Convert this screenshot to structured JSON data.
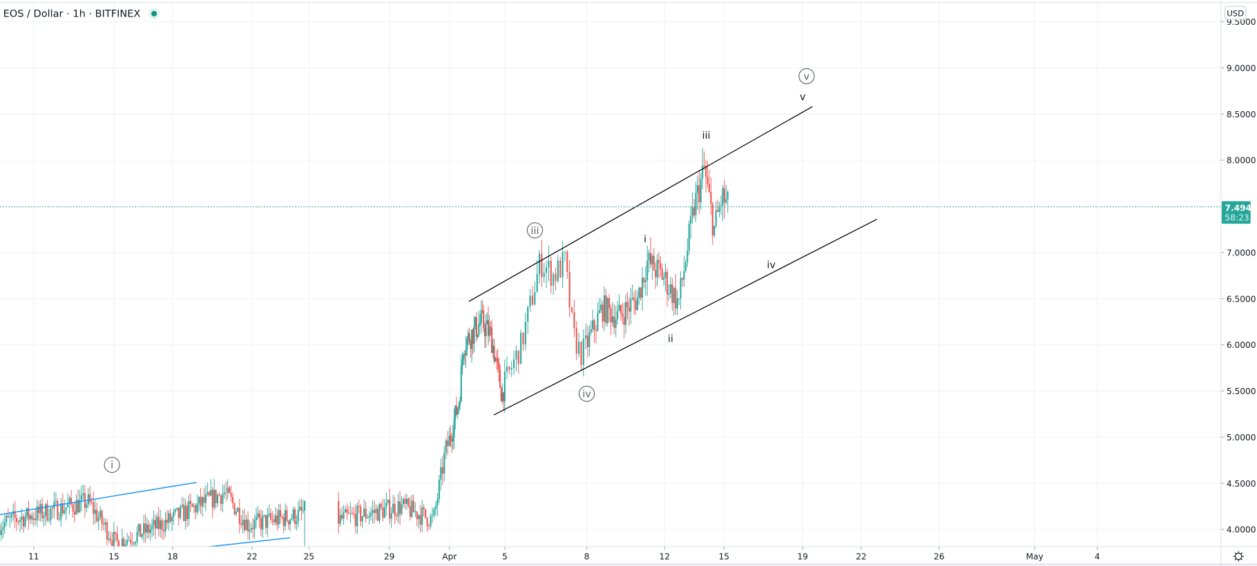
{
  "header": {
    "title": "EOS / Dollar · 1h · BITFINEX",
    "status_icon": "market-open-dot",
    "status_color": "#089981"
  },
  "price_axis": {
    "currency_label": "USD",
    "last_price": "7.4946",
    "countdown": "58:23",
    "settings_icon": "gear-icon"
  },
  "colors": {
    "up": "#26a69a",
    "down": "#ef5350",
    "channel": "#000000",
    "wedge": "#2196f3",
    "grid": "#f0f3fa"
  },
  "chart_data": {
    "type": "candlestick",
    "title": "EOS / Dollar · 1h · BITFINEX",
    "ylim": [
      3.85,
      9.7
    ],
    "yticks": [
      "9.5000",
      "9.0000",
      "8.5000",
      "8.0000",
      "7.0000",
      "6.5000",
      "6.0000",
      "5.5000",
      "5.0000",
      "4.5000",
      "4.0000"
    ],
    "ytick_values": [
      9.5,
      9.0,
      8.5,
      8.0,
      7.0,
      6.5,
      6.0,
      5.5,
      5.0,
      4.5,
      4.0
    ],
    "xticks": [
      {
        "label": "11",
        "day": 10
      },
      {
        "label": "15",
        "day": 14
      },
      {
        "label": "18",
        "day": 17
      },
      {
        "label": "22",
        "day": 21
      },
      {
        "label": "25",
        "day": 24
      },
      {
        "label": "29",
        "day": 28
      },
      {
        "label": "Apr",
        "day": 31
      },
      {
        "label": "5",
        "day": 35
      },
      {
        "label": "8",
        "day": 38
      },
      {
        "label": "12",
        "day": 42
      },
      {
        "label": "15",
        "day": 45
      },
      {
        "label": "19",
        "day": 49
      },
      {
        "label": "22",
        "day": 52
      },
      {
        "label": "26",
        "day": 56
      },
      {
        "label": "May",
        "day": 61
      },
      {
        "label": "4",
        "day": 64
      }
    ],
    "price_path": [
      [
        8.3,
        4.05
      ],
      [
        8.9,
        4.1
      ],
      [
        12.7,
        4.3
      ],
      [
        14.1,
        3.85
      ],
      [
        16.4,
        4.05
      ],
      [
        19.6,
        4.4
      ],
      [
        20.8,
        4.05
      ],
      [
        23.4,
        4.15
      ],
      [
        23.8,
        4.2
      ],
      [
        25.4,
        4.1
      ],
      [
        28.6,
        4.25
      ],
      [
        30.2,
        4.1
      ],
      [
        30.8,
        4.85
      ],
      [
        31.7,
        5.4
      ],
      [
        32.0,
        6.0
      ],
      [
        33.3,
        6.25
      ],
      [
        34.0,
        6.1
      ],
      [
        34.8,
        5.45
      ],
      [
        35.6,
        6.0
      ],
      [
        36.3,
        6.9
      ],
      [
        36.8,
        6.75
      ],
      [
        37.2,
        6.9
      ],
      [
        37.5,
        6.1
      ],
      [
        37.8,
        5.9
      ],
      [
        38.8,
        6.4
      ],
      [
        39.6,
        6.3
      ],
      [
        40.6,
        6.5
      ],
      [
        41.1,
        6.9
      ],
      [
        41.9,
        6.75
      ],
      [
        42.7,
        6.45
      ],
      [
        43.5,
        7.5
      ],
      [
        44.0,
        7.9
      ],
      [
        44.5,
        7.25
      ],
      [
        44.9,
        7.6
      ],
      [
        45.2,
        7.4946
      ]
    ],
    "data_gap": [
      23.8,
      25.4
    ],
    "last_price": 7.4946,
    "trendlines": [
      {
        "name": "channel-upper",
        "color": "#000000",
        "from": [
          32.4,
          6.47
        ],
        "to": [
          49.5,
          8.58
        ]
      },
      {
        "name": "channel-lower",
        "color": "#000000",
        "from": [
          34.2,
          5.24
        ],
        "to": [
          52.8,
          7.36
        ]
      },
      {
        "name": "wedge-upper",
        "color": "#2196f3",
        "from": [
          8.3,
          4.16
        ],
        "to": [
          18.2,
          4.51
        ]
      },
      {
        "name": "wedge-lower",
        "color": "#2196f3",
        "from": [
          18.7,
          3.81
        ],
        "to": [
          23.0,
          3.91
        ]
      }
    ],
    "wave_labels": [
      {
        "text": "i",
        "circled": true,
        "day": 13.9,
        "price": 4.7
      },
      {
        "text": "iii",
        "circled": true,
        "day": 36.1,
        "price": 7.24
      },
      {
        "text": "iv",
        "circled": true,
        "day": 38.0,
        "price": 5.47
      },
      {
        "text": "v",
        "circled": true,
        "day": 49.2,
        "price": 8.91
      },
      {
        "text": "v",
        "circled": false,
        "day": 49.0,
        "price": 8.69
      },
      {
        "text": "iii",
        "circled": false,
        "day": 44.1,
        "price": 8.27
      },
      {
        "text": "i",
        "circled": false,
        "day": 41.0,
        "price": 7.15
      },
      {
        "text": "ii",
        "circled": false,
        "day": 42.3,
        "price": 6.07
      },
      {
        "text": "iv",
        "circled": false,
        "day": 47.4,
        "price": 6.87
      }
    ]
  }
}
